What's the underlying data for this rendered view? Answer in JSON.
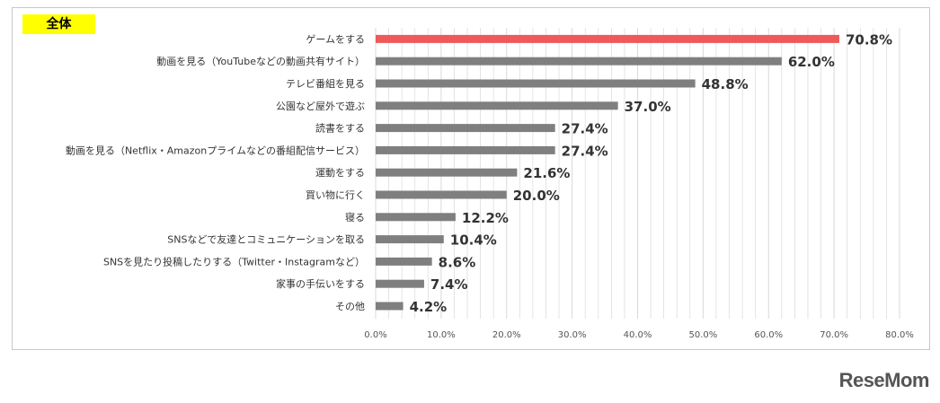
{
  "badge": "全体",
  "logo": "ReseMom",
  "colors": {
    "highlight": "#ee5a5a",
    "bar": "#7f7f7f",
    "grid": "#d9d9d9"
  },
  "chart_data": {
    "type": "bar",
    "orientation": "horizontal",
    "categories": [
      "ゲームをする",
      "動画を見る（YouTubeなどの動画共有サイト）",
      "テレビ番組を見る",
      "公園など屋外で遊ぶ",
      "読書をする",
      "動画を見る（Netflix・Amazonプライムなどの番組配信サービス）",
      "運動をする",
      "買い物に行く",
      "寝る",
      "SNSなどで友達とコミュニケーションを取る",
      "SNSを見たり投稿したりする（Twitter・Instagramなど）",
      "家事の手伝いをする",
      "その他"
    ],
    "values": [
      70.8,
      62.0,
      48.8,
      37.0,
      27.4,
      27.4,
      21.6,
      20.0,
      12.2,
      10.4,
      8.6,
      7.4,
      4.2
    ],
    "value_labels": [
      "70.8%",
      "62.0%",
      "48.8%",
      "37.0%",
      "27.4%",
      "27.4%",
      "21.6%",
      "20.0%",
      "12.2%",
      "10.4%",
      "8.6%",
      "7.4%",
      "4.2%"
    ],
    "highlight_index": 0,
    "xlim": [
      0,
      80
    ],
    "xticks": [
      0,
      10,
      20,
      30,
      40,
      50,
      60,
      70,
      80
    ],
    "xtick_labels": [
      "0.0%",
      "10.0%",
      "20.0%",
      "30.0%",
      "40.0%",
      "50.0%",
      "60.0%",
      "70.0%",
      "80.0%"
    ],
    "grid": true
  }
}
